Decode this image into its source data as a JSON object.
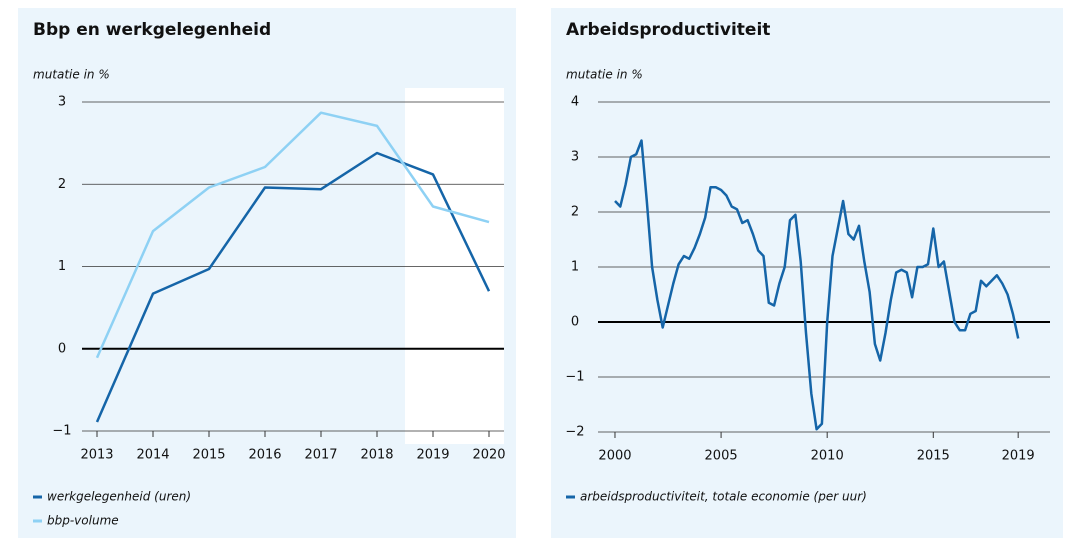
{
  "chart_data": [
    {
      "type": "line",
      "title": "Bbp en werkgelegenheid",
      "y_label": "mutatie in %",
      "categories": [
        "2013",
        "2014",
        "2015",
        "2016",
        "2017",
        "2018",
        "2019",
        "2020"
      ],
      "series": [
        {
          "name": "werkgelegenheid (uren)",
          "color": "#1565a8",
          "values": [
            -0.89,
            0.67,
            0.97,
            1.96,
            1.94,
            2.38,
            2.12,
            0.7
          ]
        },
        {
          "name": "bbp-volume",
          "color": "#8ed1f4",
          "values": [
            -0.11,
            1.43,
            1.96,
            2.21,
            2.87,
            2.71,
            1.73,
            1.54
          ]
        }
      ],
      "ylim": [
        -1,
        3
      ],
      "yticks": [
        {
          "value": -1,
          "label": "−1"
        },
        0,
        1,
        2,
        3
      ],
      "grid": true
    },
    {
      "type": "line",
      "title": "Arbeidsproductiviteit",
      "y_label": "mutatie in %",
      "x": [
        2000,
        2000.25,
        2000.5,
        2000.75,
        2001,
        2001.25,
        2001.5,
        2001.75,
        2002,
        2002.25,
        2002.5,
        2002.75,
        2003,
        2003.25,
        2003.5,
        2003.75,
        2004,
        2004.25,
        2004.5,
        2004.75,
        2005,
        2005.25,
        2005.5,
        2005.75,
        2006,
        2006.25,
        2006.5,
        2006.75,
        2007,
        2007.25,
        2007.5,
        2007.75,
        2008,
        2008.25,
        2008.5,
        2008.75,
        2009,
        2009.25,
        2009.5,
        2009.75,
        2010,
        2010.25,
        2010.5,
        2010.75,
        2011,
        2011.25,
        2011.5,
        2011.75,
        2012,
        2012.25,
        2012.5,
        2012.75,
        2013,
        2013.25,
        2013.5,
        2013.75,
        2014,
        2014.25,
        2014.5,
        2014.75,
        2015,
        2015.25,
        2015.5,
        2015.75,
        2016,
        2016.25,
        2016.5,
        2016.75,
        2017,
        2017.25,
        2017.5,
        2017.75,
        2018,
        2018.25,
        2018.5,
        2018.75,
        2019
      ],
      "series": [
        {
          "name": "arbeidsproductiviteit, totale economie (per uur)",
          "color": "#1565a8",
          "values": [
            2.2,
            2.1,
            2.5,
            3.0,
            3.05,
            3.3,
            2.2,
            1.0,
            0.4,
            -0.1,
            0.3,
            0.7,
            1.05,
            1.2,
            1.15,
            1.35,
            1.6,
            1.9,
            2.45,
            2.45,
            2.4,
            2.3,
            2.1,
            2.05,
            1.8,
            1.85,
            1.6,
            1.3,
            1.2,
            0.35,
            0.3,
            0.7,
            1.0,
            1.85,
            1.95,
            1.1,
            -0.2,
            -1.3,
            -1.95,
            -1.85,
            0.0,
            1.2,
            1.7,
            2.2,
            1.6,
            1.5,
            1.75,
            1.1,
            0.55,
            -0.4,
            -0.7,
            -0.2,
            0.4,
            0.9,
            0.95,
            0.9,
            0.45,
            1.0,
            1.0,
            1.05,
            1.7,
            1.0,
            1.1,
            0.55,
            0.0,
            -0.15,
            -0.15,
            0.15,
            0.2,
            0.75,
            0.65,
            0.75,
            0.85,
            0.7,
            0.5,
            0.15,
            -0.3
          ]
        }
      ],
      "xlim": [
        1999.2,
        2020.5
      ],
      "xticks": [
        2000,
        2005,
        2010,
        2015,
        2019
      ],
      "ylim": [
        -2,
        4
      ],
      "yticks": [
        {
          "value": -2,
          "label": "−2"
        },
        {
          "value": -1,
          "label": "−1"
        },
        0,
        1,
        2,
        3,
        4
      ],
      "grid": true
    }
  ]
}
